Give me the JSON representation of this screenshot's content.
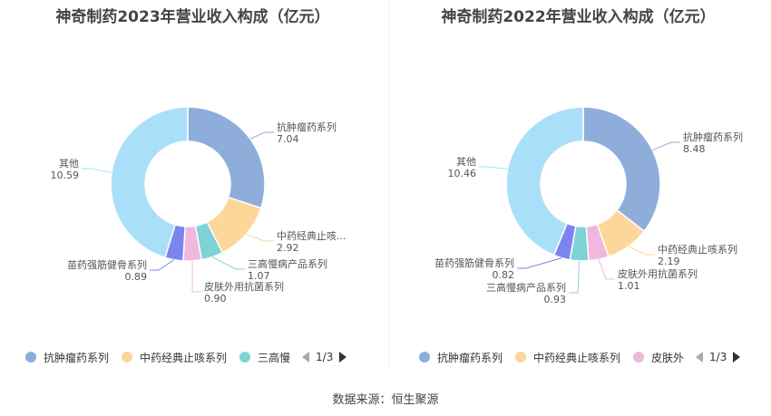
{
  "source": "数据来源：恒生聚源",
  "chart_data": [
    {
      "type": "pie",
      "title": "神奇制药2023年营业收入构成（亿元）",
      "slices": [
        {
          "name": "抗肿瘤药系列",
          "display_name": "抗肿瘤药系列",
          "value": 7.04,
          "value_label": "7.04",
          "color": "#8eaddb"
        },
        {
          "name": "中药经典止咳系列",
          "display_name": "中药经典止咳...",
          "value": 2.92,
          "value_label": "2.92",
          "color": "#fdd699"
        },
        {
          "name": "三高慢病产品系列",
          "display_name": "三高慢病产品系列",
          "value": 1.07,
          "value_label": "1.07",
          "color": "#7fd3d6"
        },
        {
          "name": "皮肤外用抗菌系列",
          "display_name": "皮肤外用抗菌系列",
          "value": 0.9,
          "value_label": "0.90",
          "color": "#f0b8dc"
        },
        {
          "name": "苗药强筋健骨系列",
          "display_name": "苗药强筋健骨系列",
          "value": 0.89,
          "value_label": "0.89",
          "color": "#7b84f0"
        },
        {
          "name": "其他",
          "display_name": "其他",
          "value": 10.59,
          "value_label": "10.59",
          "color": "#aadffa"
        }
      ],
      "legend": {
        "items": [
          {
            "label": "抗肿瘤药系列",
            "color": "#8eaddb"
          },
          {
            "label": "中药经典止咳系列",
            "color": "#fdd699"
          },
          {
            "label": "三高慢",
            "color": "#7fd3d6"
          }
        ],
        "page": "1/3",
        "placement": "bottom"
      }
    },
    {
      "type": "pie",
      "title": "神奇制药2022年营业收入构成（亿元）",
      "slices": [
        {
          "name": "抗肿瘤药系列",
          "display_name": "抗肿瘤药系列",
          "value": 8.48,
          "value_label": "8.48",
          "color": "#8eaddb"
        },
        {
          "name": "中药经典止咳系列",
          "display_name": "中药经典止咳系列",
          "value": 2.19,
          "value_label": "2.19",
          "color": "#fdd699"
        },
        {
          "name": "皮肤外用抗菌系列",
          "display_name": "皮肤外用抗菌系列",
          "value": 1.01,
          "value_label": "1.01",
          "color": "#f0b8dc"
        },
        {
          "name": "三高慢病产品系列",
          "display_name": "三高慢病产品系列",
          "value": 0.93,
          "value_label": "0.93",
          "color": "#7fd3d6"
        },
        {
          "name": "苗药强筋健骨系列",
          "display_name": "苗药强筋健骨系列",
          "value": 0.82,
          "value_label": "0.82",
          "color": "#7b84f0"
        },
        {
          "name": "其他",
          "display_name": "其他",
          "value": 10.46,
          "value_label": "10.46",
          "color": "#aadffa"
        }
      ],
      "legend": {
        "items": [
          {
            "label": "抗肿瘤药系列",
            "color": "#8eaddb"
          },
          {
            "label": "中药经典止咳系列",
            "color": "#fdd699"
          },
          {
            "label": "皮肤外",
            "color": "#f0b8dc"
          }
        ],
        "page": "1/3",
        "placement": "bottom"
      }
    }
  ]
}
